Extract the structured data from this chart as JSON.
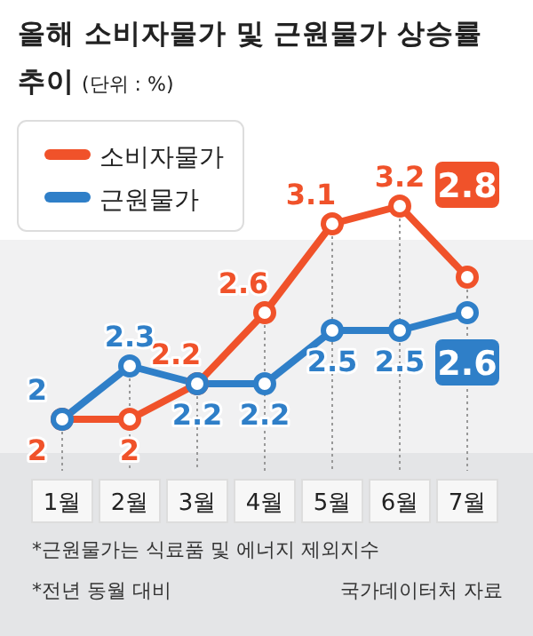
{
  "chart_data": {
    "type": "line",
    "title": "올해 소비자물가 및 근원물가 상승률 추이",
    "subtitle": "(단위 : %)",
    "categories": [
      "1월",
      "2월",
      "3월",
      "4월",
      "5월",
      "6월",
      "7월"
    ],
    "series": [
      {
        "name": "소비자물가",
        "color": "#f0522a",
        "values": [
          2,
          2,
          2.2,
          2.6,
          3.1,
          3.2,
          2.8
        ]
      },
      {
        "name": "근원물가",
        "color": "#2f7fc8",
        "values": [
          2,
          2.3,
          2.2,
          2.2,
          2.5,
          2.5,
          2.6
        ]
      }
    ],
    "data_labels": true,
    "grid": "x",
    "legend": "top left",
    "marker": "circle",
    "line_style": "solid",
    "annotations": [
      "*근원물가는 식료품 및 에너지 제외지수",
      "*전년 동월 대비",
      "국가데이터처 자료"
    ]
  }
}
